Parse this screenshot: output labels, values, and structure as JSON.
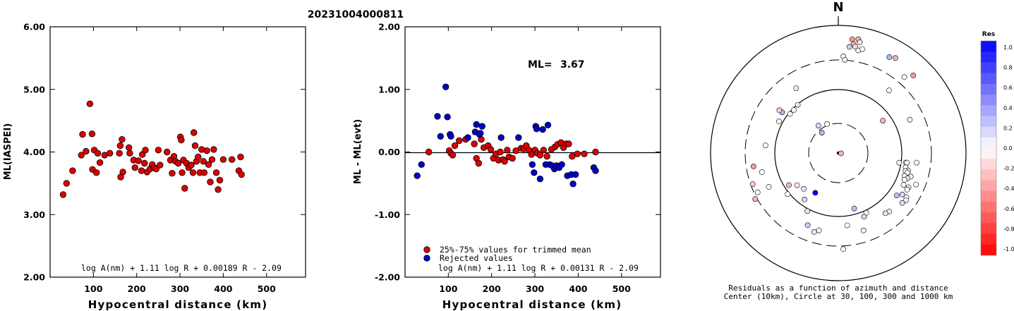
{
  "figure_title": "20231004000811",
  "chart_data": [
    {
      "type": "scatter",
      "ylabel": "ML(IASPEI)",
      "xlabel": "Hypocentral distance (km)",
      "xlim": [
        0,
        590
      ],
      "ylim": [
        2.0,
        6.0
      ],
      "xticks": [
        100,
        200,
        300,
        400,
        500
      ],
      "yticks": [
        "2.00",
        "3.00",
        "4.00",
        "5.00",
        "6.00"
      ],
      "formula": "log A(nm) + 1.11 log R + 0.00189 R - 2.09",
      "marker_color": "#dd0000",
      "points": [
        [
          30,
          3.32
        ],
        [
          38,
          3.5
        ],
        [
          52,
          3.7
        ],
        [
          72,
          3.95
        ],
        [
          75,
          4.28
        ],
        [
          83,
          4.01
        ],
        [
          92,
          4.77
        ],
        [
          97,
          4.29
        ],
        [
          98,
          3.72
        ],
        [
          102,
          4.03
        ],
        [
          107,
          3.67
        ],
        [
          110,
          3.98
        ],
        [
          115,
          3.83
        ],
        [
          126,
          3.95
        ],
        [
          138,
          3.98
        ],
        [
          160,
          3.98
        ],
        [
          162,
          4.1
        ],
        [
          163,
          3.6
        ],
        [
          166,
          4.2
        ],
        [
          168,
          3.68
        ],
        [
          182,
          4.07
        ],
        [
          184,
          3.98
        ],
        [
          193,
          3.87
        ],
        [
          196,
          3.75
        ],
        [
          204,
          3.86
        ],
        [
          211,
          3.7
        ],
        [
          213,
          3.96
        ],
        [
          218,
          3.82
        ],
        [
          220,
          4.03
        ],
        [
          224,
          3.68
        ],
        [
          231,
          3.73
        ],
        [
          236,
          3.8
        ],
        [
          240,
          3.75
        ],
        [
          245,
          3.73
        ],
        [
          250,
          4.03
        ],
        [
          254,
          3.79
        ],
        [
          270,
          4.0
        ],
        [
          278,
          3.87
        ],
        [
          282,
          3.66
        ],
        [
          286,
          3.93
        ],
        [
          290,
          3.85
        ],
        [
          296,
          3.82
        ],
        [
          301,
          4.24
        ],
        [
          303,
          4.19
        ],
        [
          305,
          3.67
        ],
        [
          308,
          3.87
        ],
        [
          311,
          3.42
        ],
        [
          315,
          3.82
        ],
        [
          320,
          3.75
        ],
        [
          326,
          3.79
        ],
        [
          330,
          3.67
        ],
        [
          332,
          4.31
        ],
        [
          335,
          4.1
        ],
        [
          338,
          3.85
        ],
        [
          342,
          3.92
        ],
        [
          346,
          3.67
        ],
        [
          350,
          4.04
        ],
        [
          354,
          3.85
        ],
        [
          356,
          3.67
        ],
        [
          362,
          4.02
        ],
        [
          366,
          3.8
        ],
        [
          370,
          3.52
        ],
        [
          374,
          3.88
        ],
        [
          378,
          4.04
        ],
        [
          384,
          3.67
        ],
        [
          388,
          3.4
        ],
        [
          392,
          3.55
        ],
        [
          400,
          3.88
        ],
        [
          420,
          3.88
        ],
        [
          436,
          3.7
        ],
        [
          440,
          3.92
        ],
        [
          442,
          3.64
        ]
      ]
    },
    {
      "type": "scatter",
      "ylabel": "ML - ML(evt)",
      "xlabel": "Hypocentral distance (km)",
      "xlim": [
        0,
        590
      ],
      "ylim": [
        -2.0,
        2.0
      ],
      "xticks": [
        100,
        200,
        300,
        400,
        500
      ],
      "yticks": [
        "-2.00",
        "-1.00",
        "0.00",
        "1.00",
        "2.00"
      ],
      "annotation_label": "ML=",
      "annotation_value": "3.67",
      "legend_trimmed": "25%-75% values for trimmed mean",
      "legend_rejected": "Rejected values",
      "formula": "log A(nm) + 1.11 log R + 0.00131 R - 2.09",
      "trimmed_color": "#dd0000",
      "rejected_color": "#0000cc",
      "trimmed_points": [
        [
          55,
          0.0
        ],
        [
          102,
          0.02
        ],
        [
          106,
          -0.02
        ],
        [
          110,
          -0.05
        ],
        [
          115,
          0.1
        ],
        [
          125,
          0.18
        ],
        [
          140,
          0.2
        ],
        [
          160,
          0.13
        ],
        [
          165,
          -0.1
        ],
        [
          170,
          -0.18
        ],
        [
          176,
          0.2
        ],
        [
          182,
          0.07
        ],
        [
          192,
          0.1
        ],
        [
          198,
          0.04
        ],
        [
          204,
          -0.1
        ],
        [
          210,
          -0.03
        ],
        [
          216,
          -0.13
        ],
        [
          220,
          0.0
        ],
        [
          226,
          -0.12
        ],
        [
          230,
          -0.15
        ],
        [
          236,
          0.03
        ],
        [
          240,
          -0.08
        ],
        [
          248,
          -0.1
        ],
        [
          256,
          0.02
        ],
        [
          268,
          0.06
        ],
        [
          274,
          0.05
        ],
        [
          280,
          0.1
        ],
        [
          286,
          0.03
        ],
        [
          292,
          -0.04
        ],
        [
          300,
          0.03
        ],
        [
          306,
          -0.02
        ],
        [
          312,
          -0.05
        ],
        [
          320,
          0.03
        ],
        [
          328,
          -0.07
        ],
        [
          338,
          0.04
        ],
        [
          346,
          0.08
        ],
        [
          352,
          0.12
        ],
        [
          360,
          0.15
        ],
        [
          366,
          0.07
        ],
        [
          372,
          0.13
        ],
        [
          378,
          0.13
        ],
        [
          386,
          -0.07
        ],
        [
          398,
          -0.03
        ],
        [
          414,
          -0.03
        ],
        [
          440,
          0.0
        ]
      ],
      "rejected_points": [
        [
          28,
          -0.38
        ],
        [
          38,
          -0.2
        ],
        [
          75,
          0.57
        ],
        [
          82,
          0.25
        ],
        [
          94,
          1.04
        ],
        [
          98,
          0.56
        ],
        [
          104,
          0.28
        ],
        [
          106,
          0.25
        ],
        [
          145,
          0.23
        ],
        [
          162,
          0.32
        ],
        [
          165,
          0.44
        ],
        [
          172,
          0.28
        ],
        [
          174,
          0.3
        ],
        [
          178,
          0.41
        ],
        [
          222,
          0.23
        ],
        [
          262,
          0.23
        ],
        [
          294,
          -0.2
        ],
        [
          298,
          -0.33
        ],
        [
          302,
          0.41
        ],
        [
          304,
          0.37
        ],
        [
          312,
          -0.43
        ],
        [
          318,
          0.36
        ],
        [
          325,
          -0.2
        ],
        [
          330,
          0.43
        ],
        [
          334,
          -0.2
        ],
        [
          340,
          -0.22
        ],
        [
          345,
          -0.27
        ],
        [
          350,
          -0.22
        ],
        [
          356,
          -0.25
        ],
        [
          362,
          -0.2
        ],
        [
          375,
          -0.38
        ],
        [
          384,
          -0.36
        ],
        [
          388,
          -0.51
        ],
        [
          394,
          -0.36
        ],
        [
          436,
          -0.25
        ],
        [
          440,
          -0.3
        ]
      ]
    },
    {
      "type": "polar_scatter",
      "north_label": "N",
      "caption_line1": "Residuals as a function of azimuth and distance",
      "caption_line2": "Center (10km), Circle at 30, 100, 300 and 1000 km",
      "colorbar_title": "Res",
      "colorbar_ticks": [
        "1.0",
        "0.8",
        "0.6",
        "0.4",
        "0.2",
        "0.0",
        "-0.2",
        "-0.4",
        "-0.6",
        "-0.8",
        "-1.0"
      ],
      "colorbar_range": [
        -1.0,
        1.0
      ],
      "ring_distances_km": [
        30,
        100,
        300,
        1000
      ],
      "points": [
        [
          7,
          417,
          -0.4
        ],
        [
          8,
          400,
          -0.25
        ],
        [
          6,
          388,
          0.2
        ],
        [
          10,
          420,
          -0.3
        ],
        [
          11,
          410,
          -0.1
        ],
        [
          9,
          392,
          -0.15
        ],
        [
          11,
          380,
          -0.05
        ],
        [
          13,
          388,
          0.0
        ],
        [
          3,
          352,
          0.0
        ],
        [
          4,
          340,
          0.05
        ],
        [
          28,
          395,
          0.3
        ],
        [
          31,
          403,
          -0.3
        ],
        [
          41,
          366,
          0.0
        ],
        [
          44,
          392,
          -0.4
        ],
        [
          39,
          293,
          0.0
        ],
        [
          54,
          200,
          -0.3
        ],
        [
          65,
          287,
          0.05
        ],
        [
          98,
          248,
          0.0
        ],
        [
          98,
          252,
          0.0
        ],
        [
          99,
          224,
          0.05
        ],
        [
          97,
          287,
          0.0
        ],
        [
          102,
          250,
          0.0
        ],
        [
          104,
          261,
          0.1
        ],
        [
          105,
          253,
          0.05
        ],
        [
          106,
          261,
          0.0
        ],
        [
          108,
          277,
          -0.05
        ],
        [
          109,
          255,
          0.0
        ],
        [
          110,
          268,
          0.1
        ],
        [
          112,
          259,
          0.0
        ],
        [
          112,
          305,
          0.0
        ],
        [
          116,
          264,
          0.0
        ],
        [
          116,
          284,
          -0.1
        ],
        [
          118,
          283,
          0.0
        ],
        [
          123,
          295,
          0.0
        ],
        [
          125,
          300,
          -0.05
        ],
        [
          128,
          295,
          0.15
        ],
        [
          126,
          262,
          0.25
        ],
        [
          123,
          277,
          0.15
        ],
        [
          139,
          282,
          -0.05
        ],
        [
          142,
          278,
          0.1
        ],
        [
          155,
          240,
          0.0
        ],
        [
          158,
          250,
          0.15
        ],
        [
          162,
          296,
          -0.05
        ],
        [
          164,
          210,
          0.25
        ],
        [
          173,
          265,
          0.0
        ],
        [
          177,
          350,
          0.0
        ],
        [
          194,
          290,
          0.0
        ],
        [
          197,
          300,
          0.1
        ],
        [
          203,
          285,
          0.2
        ],
        [
          208,
          239,
          0.1
        ],
        [
          210,
          167,
          1.0
        ],
        [
          224,
          181,
          0.1
        ],
        [
          216,
          209,
          0.15
        ],
        [
          231,
          237,
          0.0
        ],
        [
          232,
          190,
          -0.1
        ],
        [
          237,
          214,
          -0.3
        ],
        [
          241,
          345,
          -0.3
        ],
        [
          244,
          281,
          0.0
        ],
        [
          244,
          326,
          0.0
        ],
        [
          250,
          331,
          -0.2
        ],
        [
          256,
          286,
          0.0
        ],
        [
          261,
          312,
          -0.4
        ],
        [
          276,
          266,
          0.0
        ],
        [
          298,
          244,
          0.0
        ],
        [
          306,
          252,
          0.3
        ],
        [
          306,
          265,
          -0.2
        ],
        [
          309,
          226,
          0.0
        ],
        [
          314,
          225,
          0.0
        ],
        [
          320,
          229,
          0.1
        ],
        [
          327,
          281,
          -0.1
        ],
        [
          339,
          113,
          0.0
        ],
        [
          324,
          123,
          0.15
        ],
        [
          321,
          95,
          0.3
        ],
        [
          97,
          10,
          -0.3
        ]
      ]
    }
  ]
}
